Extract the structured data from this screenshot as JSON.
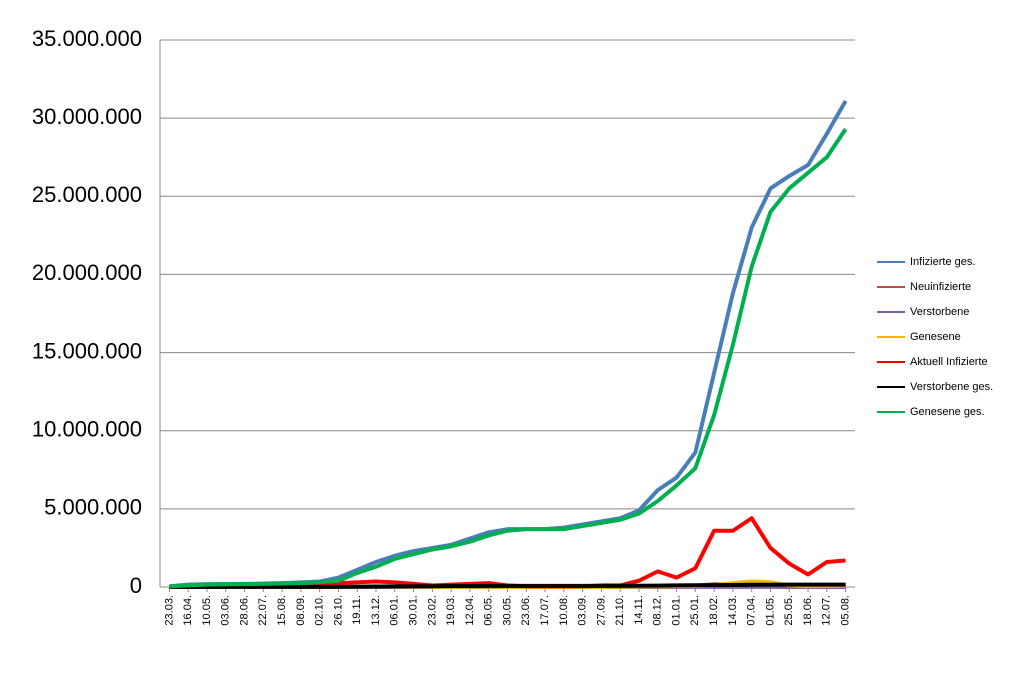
{
  "chart_data": {
    "type": "line",
    "categories": [
      "23.03.",
      "16.04.",
      "10.05.",
      "03.06.",
      "28.06.",
      "22.07.",
      "15.08.",
      "08.09.",
      "02.10.",
      "26.10.",
      "19.11.",
      "13.12.",
      "06.01.",
      "30.01.",
      "23.02.",
      "19.03.",
      "12.04.",
      "06.05.",
      "30.05.",
      "23.06.",
      "17.07.",
      "10.08.",
      "03.09.",
      "27.09.",
      "21.10.",
      "14.11.",
      "08.12.",
      "01.01.",
      "25.01.",
      "18.02.",
      "14.03.",
      "07.04.",
      "01.05.",
      "25.05.",
      "18.06.",
      "12.07.",
      "05.08."
    ],
    "series": [
      {
        "name": "Infizierte ges.",
        "color": "#4a7ebb",
        "values": [
          0.05,
          0.15,
          0.18,
          0.19,
          0.2,
          0.22,
          0.25,
          0.3,
          0.35,
          0.6,
          1.1,
          1.6,
          2.0,
          2.3,
          2.5,
          2.7,
          3.1,
          3.5,
          3.7,
          3.7,
          3.7,
          3.8,
          4.0,
          4.2,
          4.4,
          4.9,
          6.2,
          7.0,
          8.6,
          13.7,
          18.8,
          23.0,
          25.5,
          26.3,
          27.0,
          29.0,
          31.1
        ]
      },
      {
        "name": "Neuinfizierte",
        "color": "#be4b48",
        "values": [
          0.01,
          0.01,
          0.01,
          0.01,
          0.01,
          0.01,
          0.01,
          0.01,
          0.01,
          0.02,
          0.02,
          0.03,
          0.02,
          0.02,
          0.01,
          0.02,
          0.02,
          0.02,
          0.01,
          0.01,
          0.01,
          0.01,
          0.01,
          0.01,
          0.02,
          0.04,
          0.06,
          0.05,
          0.08,
          0.18,
          0.15,
          0.12,
          0.08,
          0.05,
          0.04,
          0.1,
          0.1
        ]
      },
      {
        "name": "Verstorbene",
        "color": "#7d60a0",
        "values": [
          0,
          0,
          0,
          0,
          0,
          0,
          0,
          0,
          0,
          0,
          0,
          0,
          0,
          0,
          0,
          0,
          0,
          0,
          0,
          0,
          0,
          0,
          0,
          0,
          0,
          0,
          0,
          0,
          0.01,
          0.01,
          0.01,
          0.01,
          0.01,
          0,
          0,
          0,
          0
        ]
      },
      {
        "name": "Genesene",
        "color": "#f5b800",
        "values": [
          0.01,
          0.01,
          0.01,
          0.01,
          0.01,
          0.01,
          0.01,
          0.01,
          0.01,
          0.01,
          0.02,
          0.02,
          0.02,
          0.02,
          0.01,
          0.01,
          0.02,
          0.02,
          0.01,
          0.01,
          0.01,
          0.01,
          0.01,
          0.01,
          0.02,
          0.03,
          0.05,
          0.05,
          0.06,
          0.12,
          0.25,
          0.35,
          0.3,
          0.1,
          0.05,
          0.06,
          0.08
        ]
      },
      {
        "name": "Aktuell Infizierte",
        "color": "#ff0000",
        "values": [
          0.03,
          0.05,
          0.04,
          0.03,
          0.03,
          0.03,
          0.04,
          0.06,
          0.1,
          0.25,
          0.3,
          0.35,
          0.3,
          0.2,
          0.1,
          0.15,
          0.2,
          0.25,
          0.1,
          0.05,
          0.05,
          0.05,
          0.05,
          0.1,
          0.1,
          0.4,
          1.0,
          0.6,
          1.2,
          3.6,
          3.6,
          4.4,
          2.5,
          1.5,
          0.8,
          1.6,
          1.7
        ]
      },
      {
        "name": "Verstorbene ges.",
        "color": "#000000",
        "values": [
          0,
          0,
          0.01,
          0.01,
          0.01,
          0.01,
          0.01,
          0.01,
          0.01,
          0.01,
          0.02,
          0.03,
          0.04,
          0.05,
          0.05,
          0.06,
          0.06,
          0.07,
          0.07,
          0.07,
          0.07,
          0.07,
          0.07,
          0.07,
          0.07,
          0.08,
          0.09,
          0.1,
          0.11,
          0.12,
          0.13,
          0.14,
          0.14,
          0.15,
          0.15,
          0.15,
          0.15
        ]
      },
      {
        "name": "Genesene ges.",
        "color": "#00b050",
        "values": [
          0.03,
          0.1,
          0.15,
          0.17,
          0.18,
          0.2,
          0.22,
          0.25,
          0.3,
          0.4,
          0.9,
          1.3,
          1.8,
          2.1,
          2.4,
          2.6,
          2.9,
          3.3,
          3.6,
          3.7,
          3.7,
          3.7,
          3.9,
          4.1,
          4.3,
          4.7,
          5.5,
          6.5,
          7.6,
          11.0,
          15.5,
          20.5,
          24.0,
          25.5,
          26.5,
          27.5,
          29.3
        ]
      }
    ],
    "ylim": [
      0,
      35
    ],
    "yticks": [
      0,
      {
        "value": 5,
        "label": "5.000.000"
      },
      {
        "value": 10,
        "label": "10.000.000"
      },
      {
        "value": 15,
        "label": "15.000.000"
      },
      {
        "value": 20,
        "label": "20.000.000"
      },
      {
        "value": 25,
        "label": "25.000.000"
      },
      {
        "value": 30,
        "label": "30.000.000"
      },
      {
        "value": 35,
        "label": "35.000.000"
      }
    ],
    "grid": true,
    "legend": "right"
  }
}
